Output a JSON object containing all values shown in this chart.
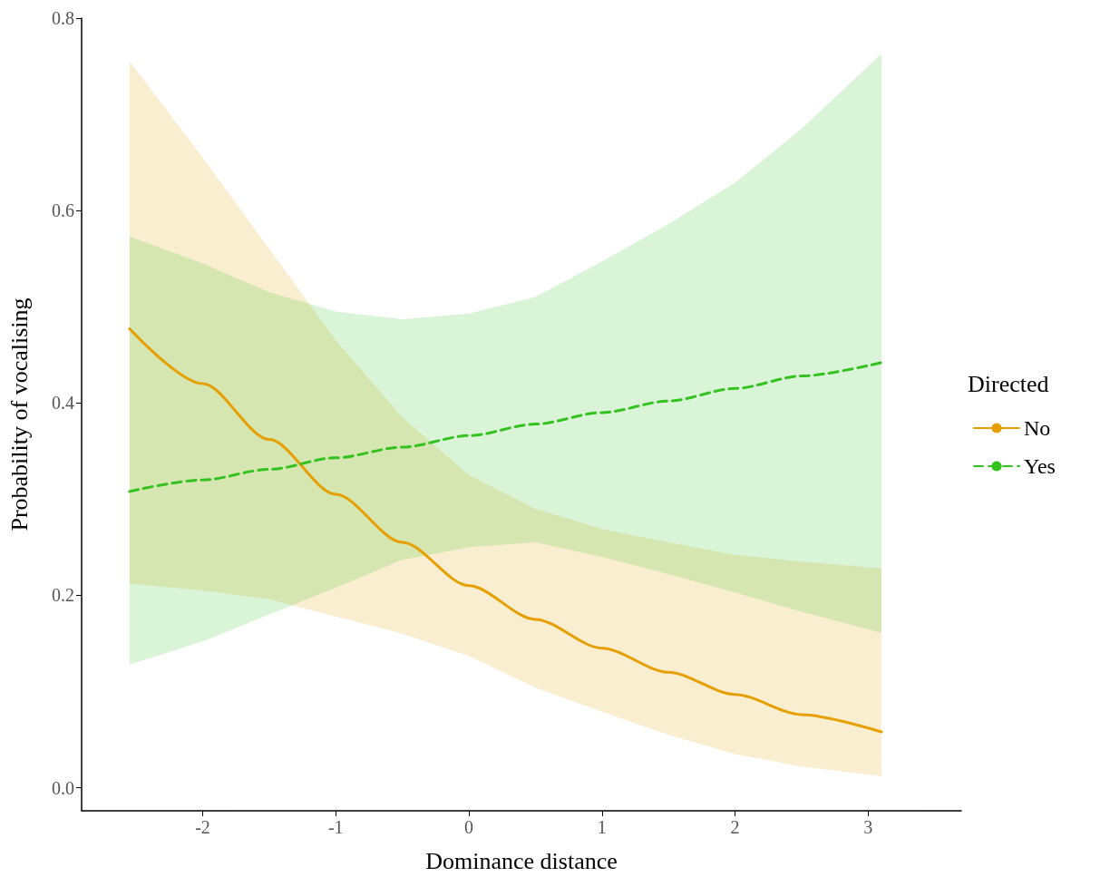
{
  "chart_data": {
    "type": "line",
    "xlabel": "Dominance distance",
    "ylabel": "Probability of vocalising",
    "legend_title": "Directed",
    "legend": "right",
    "grid": false,
    "marker": "none",
    "xlim": [
      -2.91,
      3.7
    ],
    "ylim": [
      -0.024,
      0.8
    ],
    "xticks": [
      -2,
      -1,
      0,
      1,
      2,
      3
    ],
    "yticks": [
      {
        "value": 0,
        "label": "0.0"
      },
      {
        "value": 0.2,
        "label": "0.2"
      },
      {
        "value": 0.4,
        "label": "0.4"
      },
      {
        "value": 0.6,
        "label": "0.6"
      },
      {
        "value": 0.8,
        "label": "0.8"
      }
    ],
    "x": [
      -2.55,
      -2,
      -1.5,
      -1,
      -0.5,
      0,
      0.5,
      1,
      1.5,
      2,
      2.5,
      3.1
    ],
    "series": [
      {
        "name": "No",
        "color": "#e69f00",
        "line_style": "solid",
        "values": [
          0.477,
          0.42,
          0.362,
          0.305,
          0.255,
          0.21,
          0.175,
          0.145,
          0.12,
          0.097,
          0.076,
          0.058
        ],
        "lower": [
          0.212,
          0.205,
          0.196,
          0.178,
          0.16,
          0.137,
          0.104,
          0.079,
          0.055,
          0.035,
          0.022,
          0.012
        ],
        "upper": [
          0.755,
          0.655,
          0.56,
          0.465,
          0.385,
          0.325,
          0.29,
          0.269,
          0.255,
          0.242,
          0.235,
          0.228
        ]
      },
      {
        "name": "Yes",
        "color": "#33c21f",
        "line_style": "dashed",
        "values": [
          0.308,
          0.32,
          0.331,
          0.343,
          0.354,
          0.366,
          0.378,
          0.39,
          0.402,
          0.415,
          0.428,
          0.442
        ],
        "lower": [
          0.128,
          0.152,
          0.18,
          0.208,
          0.237,
          0.25,
          0.255,
          0.24,
          0.222,
          0.203,
          0.183,
          0.161
        ],
        "upper": [
          0.573,
          0.545,
          0.515,
          0.495,
          0.487,
          0.493,
          0.51,
          0.547,
          0.586,
          0.629,
          0.685,
          0.763
        ]
      }
    ]
  }
}
